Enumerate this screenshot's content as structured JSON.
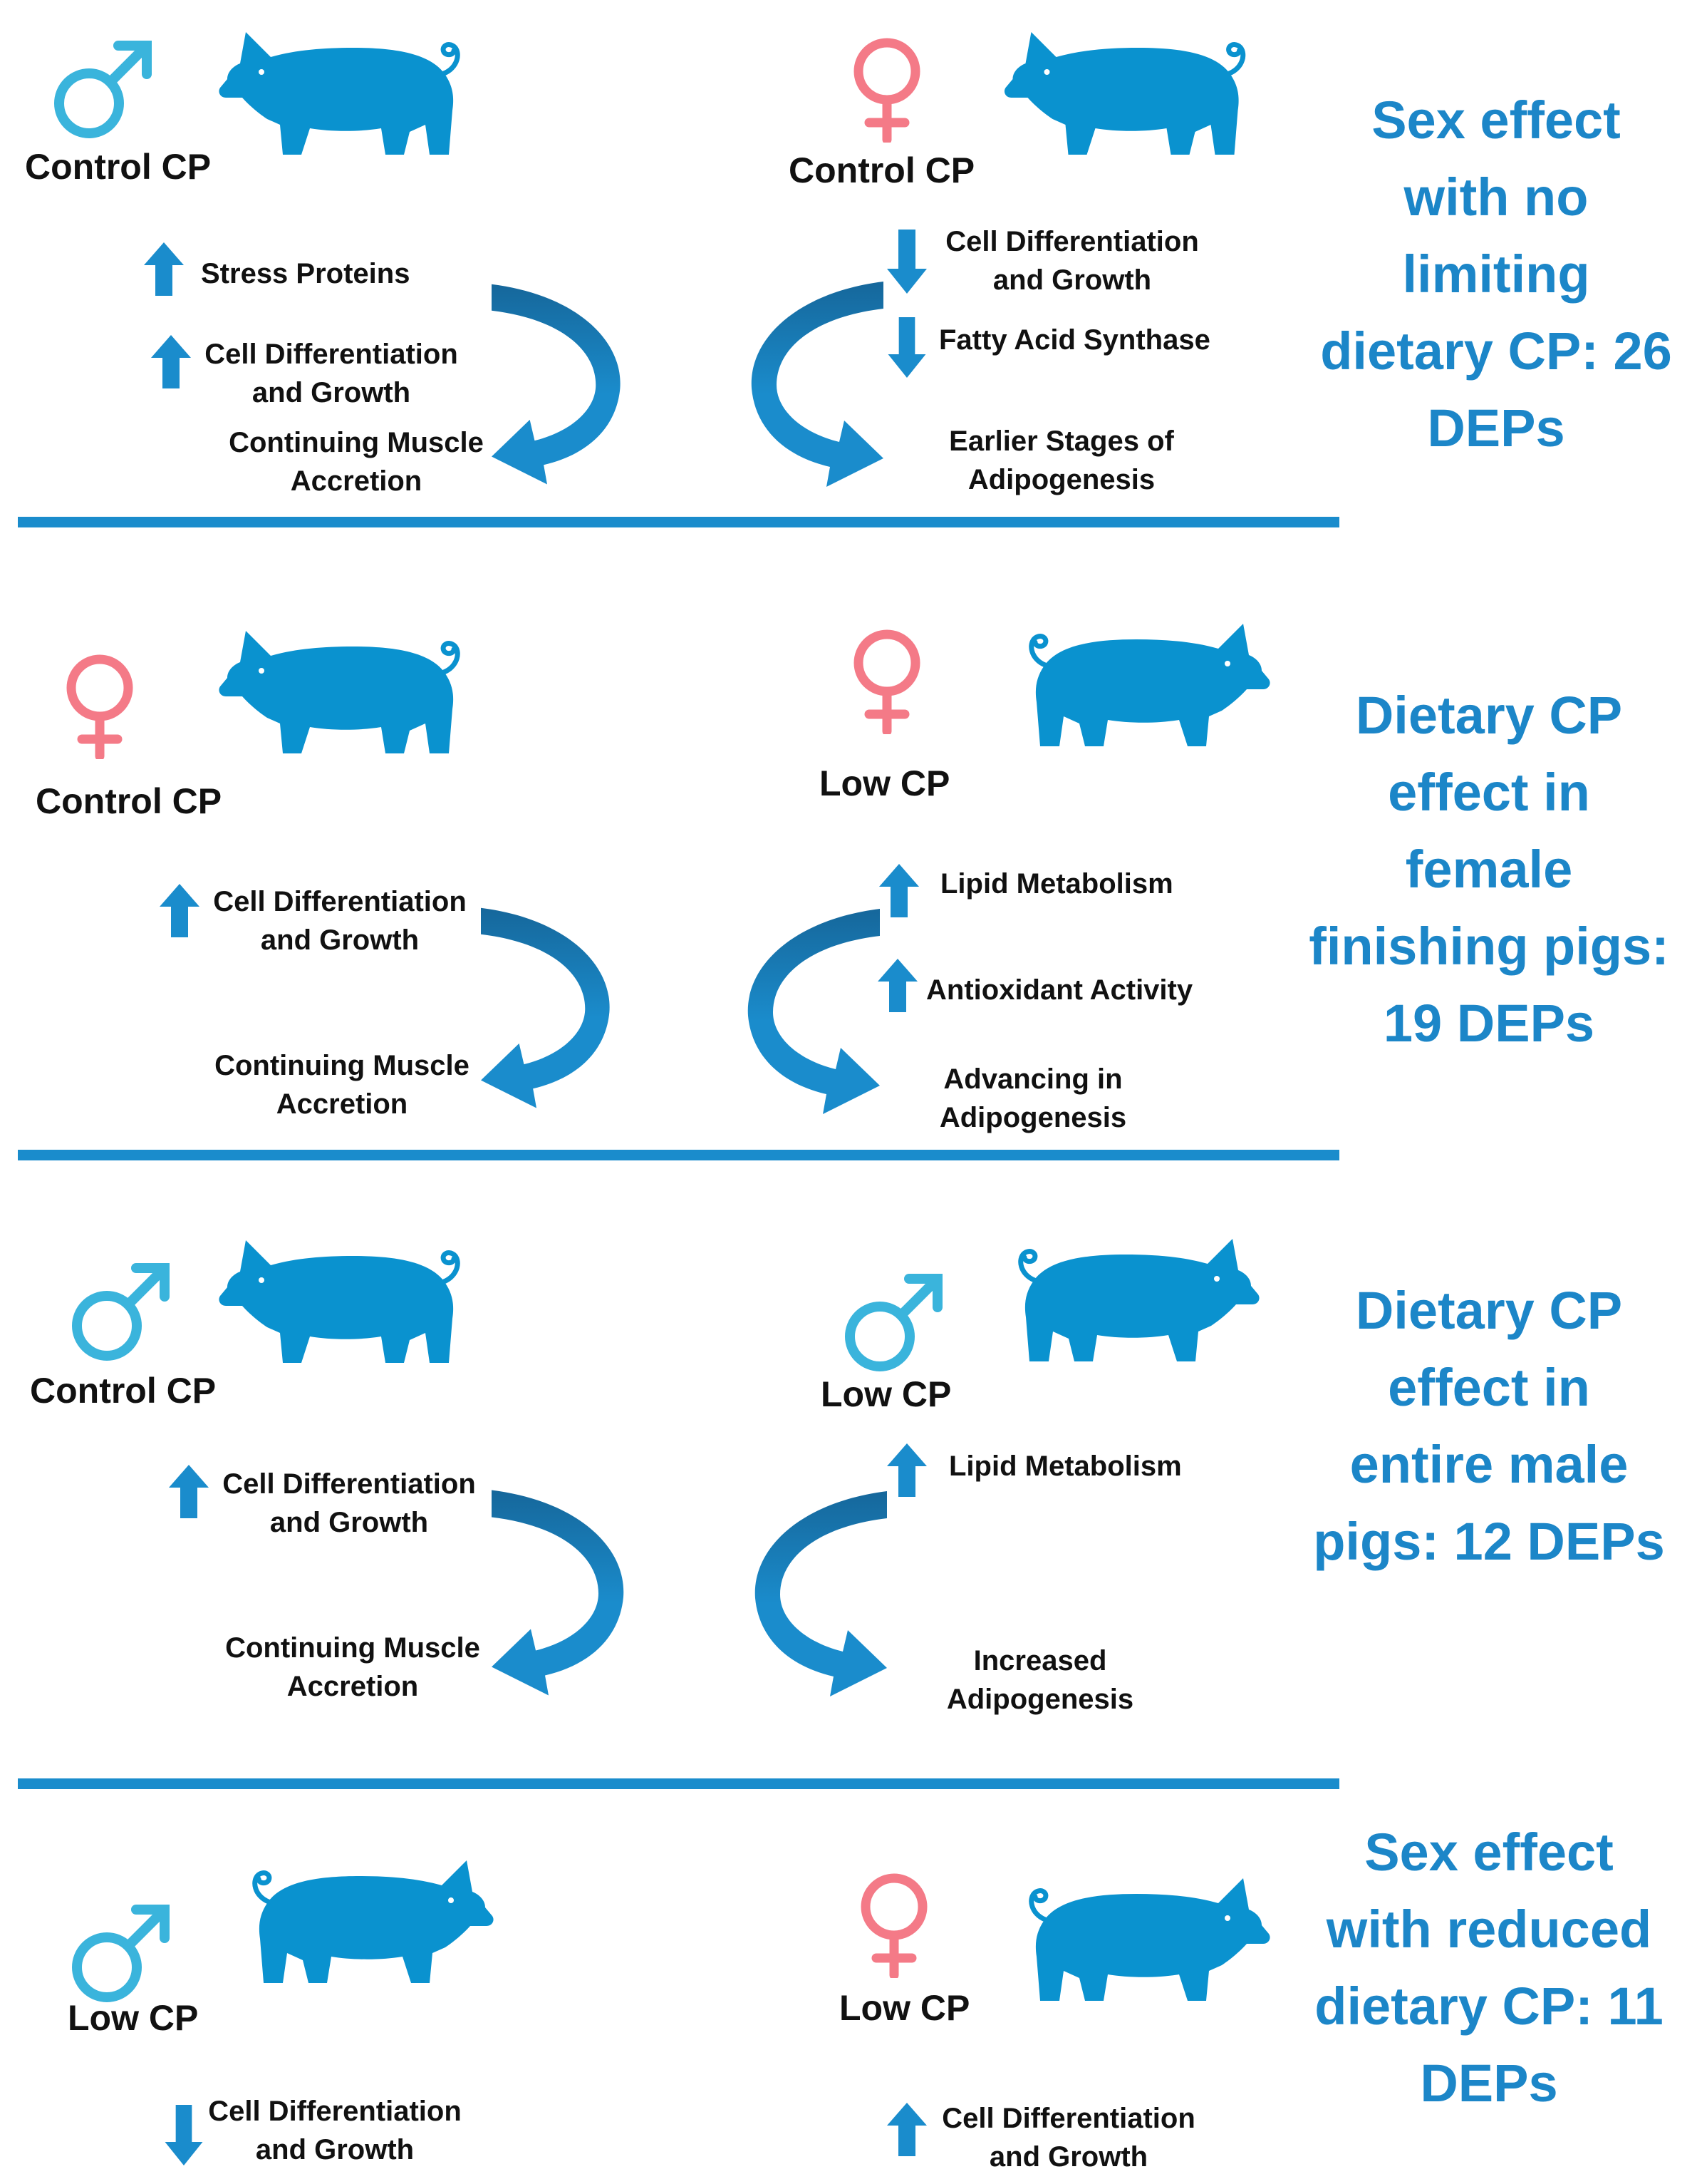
{
  "colors": {
    "pig": "#0a92cf",
    "male": "#3ab4dc",
    "female": "#f47a87",
    "arrow": "#1a8ccc",
    "curve_dark": "#16679b",
    "text_blue": "#1c86c8"
  },
  "panels": [
    {
      "left": {
        "sex": "male",
        "label": "Control CP",
        "items": [
          {
            "dir": "up",
            "text": "Stress Proteins"
          },
          {
            "dir": "up",
            "text": "Cell Differentiation\nand Growth"
          }
        ],
        "outcome": "Continuing Muscle\nAccretion"
      },
      "right": {
        "sex": "female",
        "label": "Control CP",
        "items": [
          {
            "dir": "down",
            "text": "Cell Differentiation\nand Growth"
          },
          {
            "dir": "down",
            "text": "Fatty Acid Synthase"
          }
        ],
        "outcome": "Earlier Stages of\nAdipogenesis"
      },
      "summary": "Sex effect\nwith no\nlimiting\ndietary CP: 26\nDEPs"
    },
    {
      "left": {
        "sex": "female",
        "label": "Control CP",
        "items": [
          {
            "dir": "up",
            "text": "Cell Differentiation\nand Growth"
          }
        ],
        "outcome": "Continuing Muscle\nAccretion"
      },
      "right": {
        "sex": "female",
        "label": "Low CP",
        "items": [
          {
            "dir": "up",
            "text": "Lipid Metabolism"
          },
          {
            "dir": "up",
            "text": "Antioxidant Activity"
          }
        ],
        "outcome": "Advancing in\nAdipogenesis"
      },
      "summary": "Dietary CP\neffect in\nfemale\nfinishing pigs:\n19 DEPs"
    },
    {
      "left": {
        "sex": "male",
        "label": "Control CP",
        "items": [
          {
            "dir": "up",
            "text": "Cell Differentiation\nand Growth"
          }
        ],
        "outcome": "Continuing Muscle\nAccretion"
      },
      "right": {
        "sex": "male",
        "label": "Low CP",
        "items": [
          {
            "dir": "up",
            "text": "Lipid Metabolism"
          }
        ],
        "outcome": "Increased\nAdipogenesis"
      },
      "summary": "Dietary CP\neffect in\nentire male\npigs: 12 DEPs"
    },
    {
      "left": {
        "sex": "male",
        "label": "Low CP",
        "items": [
          {
            "dir": "down",
            "text": "Cell Differentiation\nand Growth"
          }
        ]
      },
      "right": {
        "sex": "female",
        "label": "Low CP",
        "items": [
          {
            "dir": "up",
            "text": "Cell Differentiation\nand Growth"
          }
        ]
      },
      "summary": "Sex effect\nwith reduced\ndietary CP: 11\nDEPs"
    }
  ]
}
